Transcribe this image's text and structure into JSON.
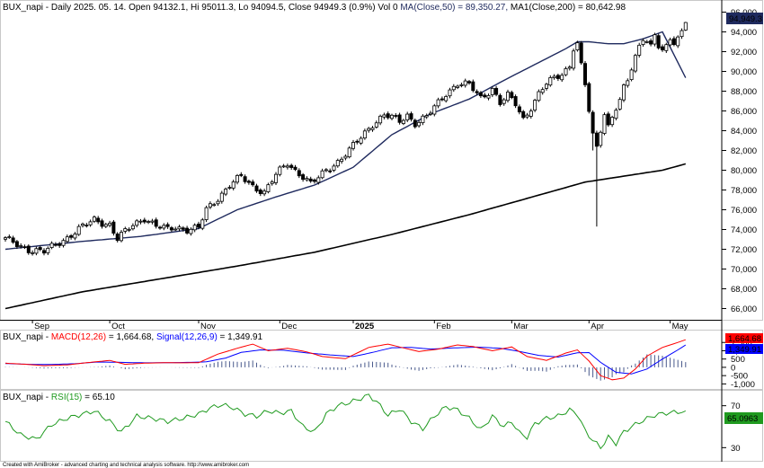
{
  "chart_data": {
    "type": "candlestick",
    "symbol": "BUX_napi",
    "header": {
      "symbol": "BUX_napi",
      "info": " - Daily 2025. 05. 14. Open 94132.1, Hi 95011.3, Lo 94094.5, Close 94949.3 (0.9%) Vol 0 ",
      "ma50_label": "MA(Close,50) = 89,350.27,",
      "ma200_label": " MA1(Close,200) = 80,642.98"
    },
    "last_price_label": "94,949.3",
    "y_ticks": [
      "96,000",
      "94,000",
      "92,000",
      "90,000",
      "88,000",
      "86,000",
      "84,000",
      "82,000",
      "80,000",
      "78,000",
      "76,000",
      "74,000",
      "72,000",
      "70,000",
      "68,000",
      "66,000"
    ],
    "ylim": [
      65500,
      96500
    ],
    "x_labels": [
      {
        "label": "Sep",
        "bar": 7
      },
      {
        "label": "Oct",
        "bar": 27
      },
      {
        "label": "Nov",
        "bar": 50
      },
      {
        "label": "Dec",
        "bar": 71
      },
      {
        "label": "2025",
        "bar": 90
      },
      {
        "label": "Feb",
        "bar": 111
      },
      {
        "label": "Mar",
        "bar": 131
      },
      {
        "label": "Apr",
        "bar": 151
      },
      {
        "label": "May",
        "bar": 172
      }
    ],
    "anchors": [
      [
        0,
        73000
      ],
      [
        3,
        72500
      ],
      [
        6,
        72000
      ],
      [
        10,
        71700
      ],
      [
        13,
        72500
      ],
      [
        16,
        73200
      ],
      [
        19,
        74000
      ],
      [
        23,
        75000
      ],
      [
        27,
        74500
      ],
      [
        29,
        73000
      ],
      [
        33,
        74500
      ],
      [
        36,
        75200
      ],
      [
        39,
        74300
      ],
      [
        42,
        74000
      ],
      [
        44,
        74300
      ],
      [
        47,
        74000
      ],
      [
        50,
        74100
      ],
      [
        52,
        76000
      ],
      [
        55,
        77200
      ],
      [
        58,
        78500
      ],
      [
        61,
        79300
      ],
      [
        64,
        78400
      ],
      [
        67,
        77800
      ],
      [
        70,
        79500
      ],
      [
        73,
        80700
      ],
      [
        75,
        80000
      ],
      [
        77,
        79400
      ],
      [
        79,
        78600
      ],
      [
        81,
        79200
      ],
      [
        83,
        80000
      ],
      [
        86,
        80900
      ],
      [
        89,
        82000
      ],
      [
        92,
        83300
      ],
      [
        95,
        84700
      ],
      [
        98,
        85600
      ],
      [
        100,
        85300
      ],
      [
        102,
        84900
      ],
      [
        104,
        85600
      ],
      [
        106,
        84800
      ],
      [
        109,
        85400
      ],
      [
        111,
        86300
      ],
      [
        114,
        87800
      ],
      [
        117,
        88800
      ],
      [
        120,
        88600
      ],
      [
        123,
        87300
      ],
      [
        126,
        88300
      ],
      [
        128,
        86800
      ],
      [
        130,
        87500
      ],
      [
        132,
        86700
      ],
      [
        134,
        85200
      ],
      [
        136,
        86400
      ],
      [
        138,
        87700
      ],
      [
        140,
        88700
      ],
      [
        142,
        89300
      ],
      [
        144,
        89800
      ],
      [
        146,
        90600
      ],
      [
        147,
        92400
      ],
      [
        148,
        92800
      ],
      [
        149,
        90500
      ],
      [
        150,
        88600
      ],
      [
        151,
        86000
      ],
      [
        152,
        83500
      ],
      [
        153,
        82300
      ],
      [
        154,
        84200
      ],
      [
        155,
        85900
      ],
      [
        156,
        84500
      ],
      [
        157,
        85400
      ],
      [
        158,
        86300
      ],
      [
        159,
        87000
      ],
      [
        160,
        88200
      ],
      [
        161,
        89000
      ],
      [
        162,
        90300
      ],
      [
        163,
        91500
      ],
      [
        164,
        92600
      ],
      [
        165,
        93500
      ],
      [
        166,
        93300
      ],
      [
        167,
        92600
      ],
      [
        168,
        93600
      ],
      [
        169,
        92500
      ],
      [
        170,
        92000
      ],
      [
        171,
        92300
      ],
      [
        172,
        93200
      ],
      [
        173,
        93000
      ],
      [
        174,
        93500
      ],
      [
        175,
        94100
      ],
      [
        176,
        94949.3
      ]
    ],
    "candles_count": 177,
    "ma50": [
      [
        0,
        72000
      ],
      [
        20,
        72800
      ],
      [
        35,
        73300
      ],
      [
        50,
        74100
      ],
      [
        60,
        76000
      ],
      [
        70,
        77300
      ],
      [
        80,
        78500
      ],
      [
        90,
        80300
      ],
      [
        100,
        83600
      ],
      [
        110,
        85700
      ],
      [
        120,
        87200
      ],
      [
        130,
        89300
      ],
      [
        140,
        91300
      ],
      [
        145,
        92300
      ],
      [
        148,
        93000
      ],
      [
        151,
        93000
      ],
      [
        156,
        92800
      ],
      [
        160,
        92800
      ],
      [
        165,
        93300
      ],
      [
        170,
        94000
      ],
      [
        176,
        89350.27
      ]
    ],
    "ma200": [
      [
        0,
        66000
      ],
      [
        20,
        67700
      ],
      [
        40,
        69000
      ],
      [
        60,
        70300
      ],
      [
        80,
        71700
      ],
      [
        100,
        73500
      ],
      [
        120,
        75500
      ],
      [
        140,
        77700
      ],
      [
        150,
        78800
      ],
      [
        160,
        79400
      ],
      [
        170,
        80000
      ],
      [
        176,
        80642.98
      ]
    ],
    "macd": {
      "label_name": "BUX_napi",
      "label_macd": "MACD(12,26)",
      "label_macd_val": " = 1,664.68, ",
      "label_signal": "Signal(12,26,9)",
      "label_signal_val": " = 1,349.91",
      "macd_value_label": "1,664.68",
      "signal_value_label": "1,349.91",
      "y_ticks": [
        "1,500",
        "1,000",
        "500",
        "0",
        "-500",
        "-1,000"
      ],
      "ylim": [
        -1250,
        2000
      ],
      "macd": [
        [
          0,
          250
        ],
        [
          6,
          170
        ],
        [
          10,
          100
        ],
        [
          16,
          150
        ],
        [
          22,
          300
        ],
        [
          27,
          420
        ],
        [
          31,
          180
        ],
        [
          36,
          250
        ],
        [
          41,
          280
        ],
        [
          46,
          270
        ],
        [
          50,
          280
        ],
        [
          55,
          800
        ],
        [
          60,
          1150
        ],
        [
          64,
          1400
        ],
        [
          68,
          1000
        ],
        [
          73,
          1150
        ],
        [
          78,
          930
        ],
        [
          82,
          650
        ],
        [
          88,
          520
        ],
        [
          94,
          1200
        ],
        [
          99,
          1400
        ],
        [
          103,
          1170
        ],
        [
          107,
          950
        ],
        [
          112,
          1100
        ],
        [
          117,
          1350
        ],
        [
          121,
          1250
        ],
        [
          126,
          1000
        ],
        [
          131,
          1230
        ],
        [
          135,
          650
        ],
        [
          140,
          420
        ],
        [
          145,
          860
        ],
        [
          148,
          1050
        ],
        [
          151,
          380
        ],
        [
          154,
          -500
        ],
        [
          157,
          -750
        ],
        [
          160,
          -650
        ],
        [
          163,
          -100
        ],
        [
          166,
          680
        ],
        [
          170,
          1200
        ],
        [
          174,
          1500
        ],
        [
          176,
          1664.68
        ]
      ],
      "signal": [
        [
          0,
          230
        ],
        [
          6,
          180
        ],
        [
          12,
          170
        ],
        [
          18,
          220
        ],
        [
          24,
          320
        ],
        [
          30,
          300
        ],
        [
          36,
          270
        ],
        [
          42,
          280
        ],
        [
          48,
          300
        ],
        [
          52,
          330
        ],
        [
          57,
          560
        ],
        [
          61,
          900
        ],
        [
          66,
          1050
        ],
        [
          72,
          1030
        ],
        [
          78,
          870
        ],
        [
          84,
          750
        ],
        [
          90,
          650
        ],
        [
          95,
          900
        ],
        [
          100,
          1180
        ],
        [
          105,
          1200
        ],
        [
          110,
          1100
        ],
        [
          116,
          1170
        ],
        [
          122,
          1220
        ],
        [
          128,
          1150
        ],
        [
          133,
          960
        ],
        [
          138,
          720
        ],
        [
          143,
          620
        ],
        [
          148,
          880
        ],
        [
          151,
          890
        ],
        [
          154,
          300
        ],
        [
          158,
          -300
        ],
        [
          162,
          -400
        ],
        [
          166,
          -100
        ],
        [
          170,
          500
        ],
        [
          174,
          1050
        ],
        [
          176,
          1349.91
        ]
      ]
    },
    "rsi": {
      "label_name": "BUX_napi",
      "label_rsi": "RSI(15)",
      "label_rsi_val": " = 65.10",
      "value_label": "65.0963",
      "y_ticks": [
        "70",
        "30"
      ],
      "ylim": [
        20,
        80
      ],
      "values": [
        [
          0,
          55
        ],
        [
          4,
          42
        ],
        [
          8,
          38
        ],
        [
          12,
          52
        ],
        [
          16,
          58
        ],
        [
          20,
          62
        ],
        [
          23,
          65
        ],
        [
          27,
          55
        ],
        [
          30,
          45
        ],
        [
          34,
          60
        ],
        [
          38,
          58
        ],
        [
          42,
          55
        ],
        [
          46,
          58
        ],
        [
          50,
          62
        ],
        [
          53,
          68
        ],
        [
          56,
          71
        ],
        [
          59,
          68
        ],
        [
          62,
          62
        ],
        [
          65,
          60
        ],
        [
          68,
          65
        ],
        [
          71,
          63
        ],
        [
          74,
          65
        ],
        [
          77,
          50
        ],
        [
          80,
          45
        ],
        [
          83,
          62
        ],
        [
          86,
          70
        ],
        [
          89,
          73
        ],
        [
          92,
          77
        ],
        [
          94,
          80
        ],
        [
          96,
          74
        ],
        [
          99,
          61
        ],
        [
          102,
          67
        ],
        [
          105,
          55
        ],
        [
          108,
          48
        ],
        [
          111,
          60
        ],
        [
          114,
          69
        ],
        [
          117,
          66
        ],
        [
          120,
          58
        ],
        [
          123,
          47
        ],
        [
          126,
          60
        ],
        [
          129,
          50
        ],
        [
          131,
          55
        ],
        [
          133,
          44
        ],
        [
          135,
          40
        ],
        [
          137,
          53
        ],
        [
          140,
          58
        ],
        [
          143,
          60
        ],
        [
          146,
          66
        ],
        [
          148,
          62
        ],
        [
          150,
          46
        ],
        [
          152,
          37
        ],
        [
          154,
          30
        ],
        [
          156,
          40
        ],
        [
          158,
          34
        ],
        [
          160,
          45
        ],
        [
          162,
          50
        ],
        [
          165,
          56
        ],
        [
          168,
          61
        ],
        [
          171,
          63
        ],
        [
          174,
          64
        ],
        [
          176,
          65.1
        ]
      ]
    },
    "colors": {
      "up_candle": "#ffffff",
      "down_candle": "#000000",
      "ma50": "#1f2a5e",
      "ma200": "#000000",
      "macd_line": "#ff0000",
      "signal_line": "#0000ff",
      "histogram": "#4a5a8c",
      "rsi_line": "#1f9a1f",
      "price_tag": "#1f2a5e",
      "rsi_tag": "#1f9a1f"
    }
  },
  "footer": {
    "credit": "Created with AmiBroker - advanced charting and technical analysis software. http://www.amibroker.com"
  }
}
